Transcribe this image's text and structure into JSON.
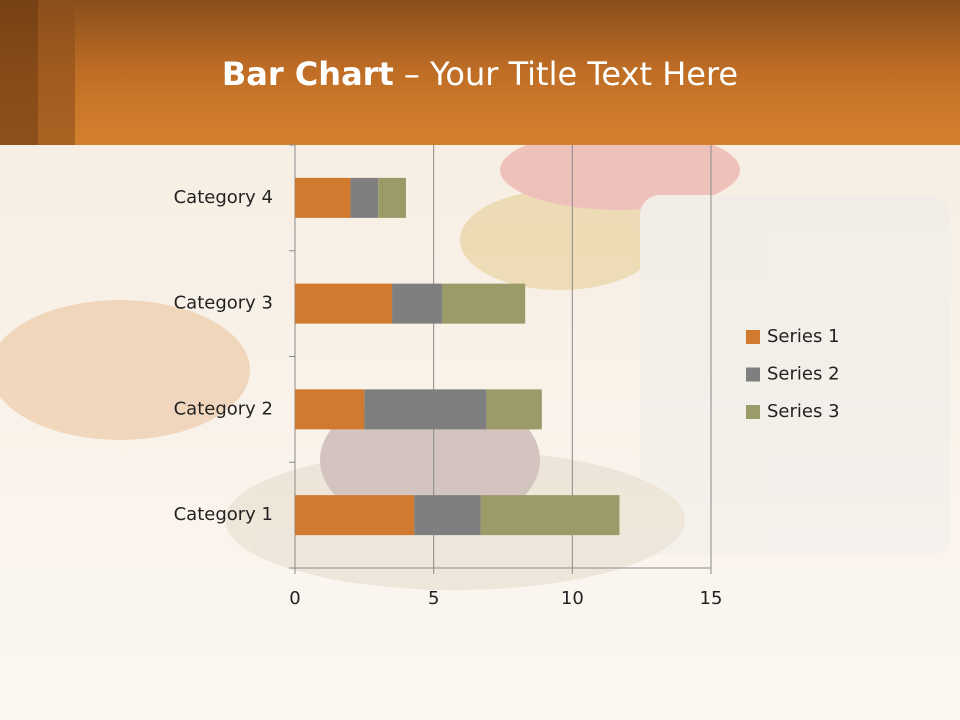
{
  "chart_data": {
    "type": "stacked_barh",
    "title": [
      "Bar Chart",
      "– Your Title Text Here"
    ],
    "categories": [
      "Category 1",
      "Category 2",
      "Category 3",
      "Category 4"
    ],
    "series": [
      {
        "name": "Series 1",
        "color": "#cf7a2f",
        "values": [
          4.3,
          2.5,
          3.5,
          2.0
        ]
      },
      {
        "name": "Series 2",
        "color": "#7f7f7f",
        "values": [
          2.4,
          4.4,
          1.8,
          1.0
        ]
      },
      {
        "name": "Series 3",
        "color": "#9a9b68",
        "values": [
          5.0,
          2.0,
          3.0,
          1.0
        ]
      }
    ],
    "xlim": [
      0,
      15
    ],
    "xticks": [
      0,
      5,
      10,
      15
    ],
    "grid": true,
    "legend": "right"
  }
}
